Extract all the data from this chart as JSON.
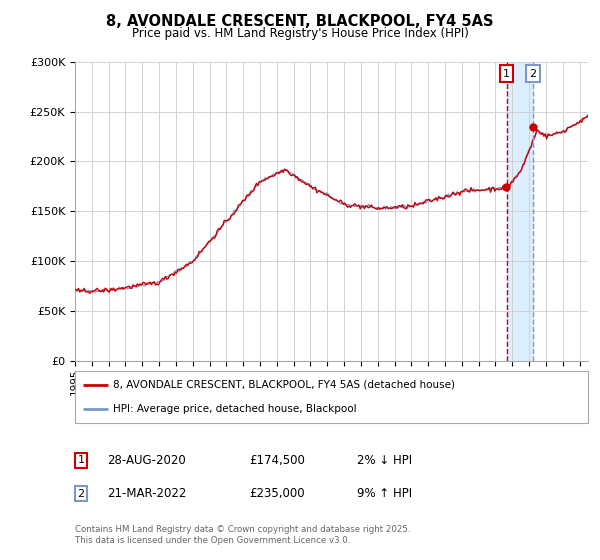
{
  "title": "8, AVONDALE CRESCENT, BLACKPOOL, FY4 5AS",
  "subtitle": "Price paid vs. HM Land Registry's House Price Index (HPI)",
  "legend_line1": "8, AVONDALE CRESCENT, BLACKPOOL, FY4 5AS (detached house)",
  "legend_line2": "HPI: Average price, detached house, Blackpool",
  "annotation1_label": "1",
  "annotation1_date": "28-AUG-2020",
  "annotation1_price": "£174,500",
  "annotation1_hpi": "2% ↓ HPI",
  "annotation2_label": "2",
  "annotation2_date": "21-MAR-2022",
  "annotation2_price": "£235,000",
  "annotation2_hpi": "9% ↑ HPI",
  "copyright": "Contains HM Land Registry data © Crown copyright and database right 2025.\nThis data is licensed under the Open Government Licence v3.0.",
  "hpi_color": "#7799cc",
  "price_color": "#cc0000",
  "shading_color": "#ddeeff",
  "vline1_color": "#cc0000",
  "vline2_color": "#7799cc",
  "background_color": "#ffffff",
  "grid_color": "#cccccc",
  "ylim": [
    0,
    300000
  ],
  "yticks": [
    0,
    50000,
    100000,
    150000,
    200000,
    250000,
    300000
  ],
  "annotation1_year": 2020.66,
  "annotation2_year": 2022.22
}
